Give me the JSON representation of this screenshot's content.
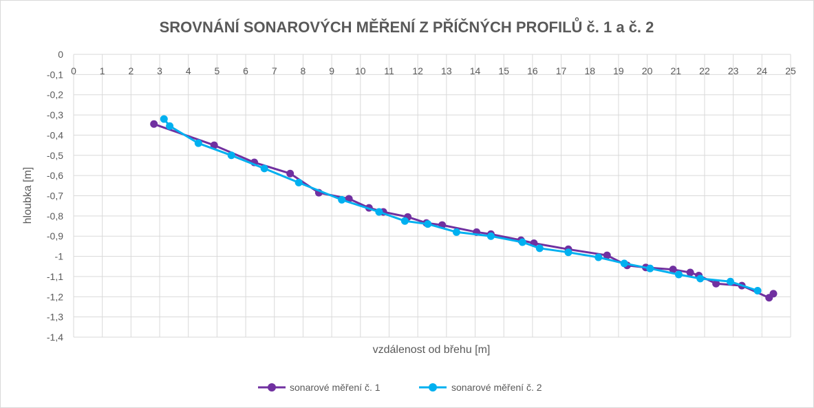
{
  "chart_data": {
    "type": "scatter",
    "title": "SROVNÁNÍ SONAROVÝCH MĚŘENÍ Z PŘÍČNÝCH PROFILŮ č. 1 a č. 2",
    "xlabel": "vzdálenost od břehu [m]",
    "ylabel": "hloubka [m]",
    "xlim": [
      0,
      25
    ],
    "ylim": [
      -1.4,
      0
    ],
    "x_ticks": [
      "0",
      "1",
      "2",
      "3",
      "4",
      "5",
      "6",
      "7",
      "8",
      "9",
      "10",
      "11",
      "12",
      "13",
      "14",
      "15",
      "16",
      "17",
      "18",
      "19",
      "20",
      "21",
      "22",
      "23",
      "24",
      "25"
    ],
    "y_ticks": [
      "0",
      "-0,1",
      "-0,2",
      "-0,3",
      "-0,4",
      "-0,5",
      "-0,6",
      "-0,7",
      "-0,8",
      "-0,9",
      "-1",
      "-1,1",
      "-1,2",
      "-1,3",
      "-1,4"
    ],
    "grid": true,
    "legend_position": "bottom",
    "series": [
      {
        "name": "sonarové měření č. 1",
        "color": "#7030a0",
        "x": [
          2.8,
          4.9,
          6.3,
          7.55,
          8.55,
          9.6,
          10.3,
          10.8,
          11.65,
          12.3,
          12.85,
          14.05,
          14.55,
          15.6,
          16.05,
          17.25,
          18.6,
          19.3,
          19.95,
          20.9,
          21.5,
          21.8,
          22.4,
          23.3,
          24.25,
          24.4
        ],
        "y": [
          -0.345,
          -0.45,
          -0.535,
          -0.59,
          -0.685,
          -0.715,
          -0.76,
          -0.78,
          -0.805,
          -0.835,
          -0.845,
          -0.88,
          -0.89,
          -0.92,
          -0.935,
          -0.965,
          -0.995,
          -1.045,
          -1.055,
          -1.065,
          -1.08,
          -1.095,
          -1.135,
          -1.145,
          -1.205,
          -1.185
        ]
      },
      {
        "name": "sonarové měření č. 2",
        "color": "#00b0f0",
        "x": [
          3.15,
          3.35,
          4.35,
          5.5,
          6.65,
          7.85,
          9.35,
          10.65,
          11.55,
          12.35,
          13.35,
          14.55,
          15.65,
          16.25,
          17.25,
          18.3,
          19.2,
          20.1,
          21.1,
          21.85,
          22.9,
          23.85
        ],
        "y": [
          -0.32,
          -0.355,
          -0.44,
          -0.5,
          -0.565,
          -0.635,
          -0.72,
          -0.78,
          -0.825,
          -0.84,
          -0.88,
          -0.9,
          -0.93,
          -0.96,
          -0.98,
          -1.005,
          -1.035,
          -1.06,
          -1.09,
          -1.11,
          -1.125,
          -1.17
        ]
      }
    ]
  }
}
